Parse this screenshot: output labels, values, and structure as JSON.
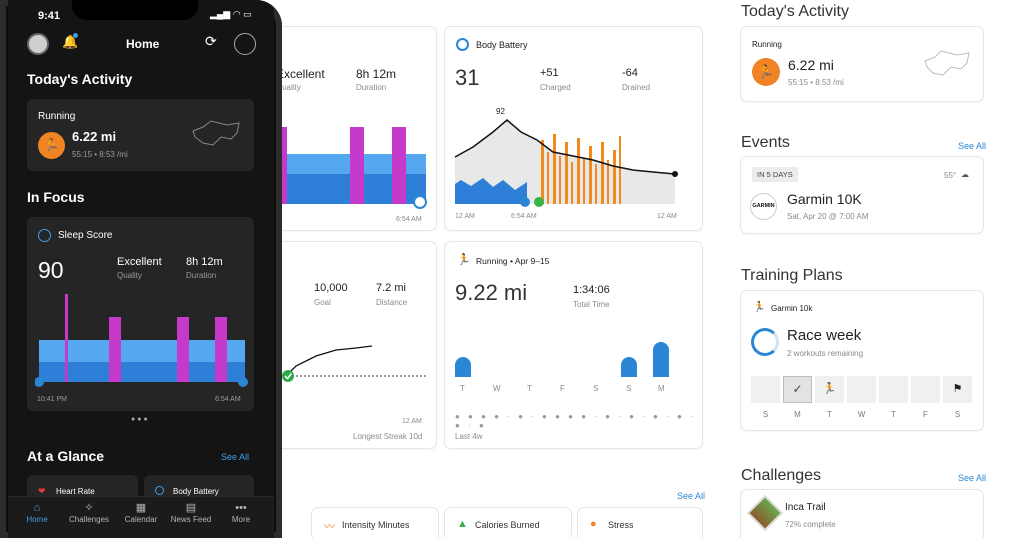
{
  "phone": {
    "time": "9:41",
    "header_title": "Home",
    "todays_activity": {
      "title": "Today's Activity",
      "activity_type": "Running",
      "distance": "6.22 mi",
      "details": "55:15 • 8:53 /mi"
    },
    "in_focus": {
      "title": "In Focus",
      "card_title": "Sleep Score",
      "score": "90",
      "quality_value": "Excellent",
      "quality_label": "Quality",
      "duration_value": "8h 12m",
      "duration_label": "Duration",
      "start_time": "10:41 PM",
      "end_time": "6:54 AM"
    },
    "at_a_glance": {
      "title": "At a Glance",
      "see_all": "See All",
      "items": [
        "Heart Rate",
        "Body Battery"
      ]
    },
    "tabs": [
      "Home",
      "Challenges",
      "Calendar",
      "News Feed",
      "More"
    ]
  },
  "sleep_card": {
    "quality_value": "Excellent",
    "quality_label": "Quality",
    "duration_value": "8h 12m",
    "duration_label": "Duration",
    "end_time": "6:54 AM"
  },
  "body_battery": {
    "title": "Body Battery",
    "value": "31",
    "charged_value": "+51",
    "charged_label": "Charged",
    "drained_value": "-64",
    "drained_label": "Drained",
    "peak": "92",
    "time_labels": [
      "12 AM",
      "6:54 AM",
      "12 AM"
    ]
  },
  "steps_card": {
    "goal_value": "10,000",
    "goal_label": "Goal",
    "distance_value": "7.2 mi",
    "distance_label": "Distance",
    "time_label": "12 AM",
    "streak": "Longest Streak 10d"
  },
  "running_card": {
    "title": "Running • Apr 9–15",
    "distance": "9.22 mi",
    "total_time_value": "1:34:06",
    "total_time_label": "Total Time",
    "days": [
      "T",
      "W",
      "T",
      "F",
      "S",
      "S",
      "M"
    ],
    "range_label": "Last 4w"
  },
  "bottom_row": {
    "see_all": "See All",
    "items": [
      "Intensity Minutes",
      "Calories Burned",
      "Stress"
    ]
  },
  "right": {
    "todays_activity": {
      "title": "Today's Activity",
      "activity_type": "Running",
      "distance": "6.22 mi",
      "details": "55:15 • 8:53 /mi"
    },
    "events": {
      "title": "Events",
      "see_all": "See All",
      "badge": "IN 5 DAYS",
      "weather": "55°",
      "logo_text": "GARMIN",
      "event_name": "Garmin 10K",
      "event_date": "Sat, Apr 20 @ 7:00 AM"
    },
    "training_plans": {
      "title": "Training Plans",
      "plan_name": "Garmin 10k",
      "status": "Race week",
      "remaining": "2 workouts remaining",
      "days": [
        "S",
        "M",
        "T",
        "W",
        "T",
        "F",
        "S"
      ]
    },
    "challenges": {
      "title": "Challenges",
      "see_all": "See All",
      "name": "Inca Trail",
      "progress": "72% complete"
    }
  },
  "colors": {
    "accent_blue": "#2b86d6",
    "sleep_blue": "#3b8fe3",
    "sleep_purple": "#c53acb",
    "battery_orange": "#f28a1e",
    "run_orange": "#f08323"
  }
}
